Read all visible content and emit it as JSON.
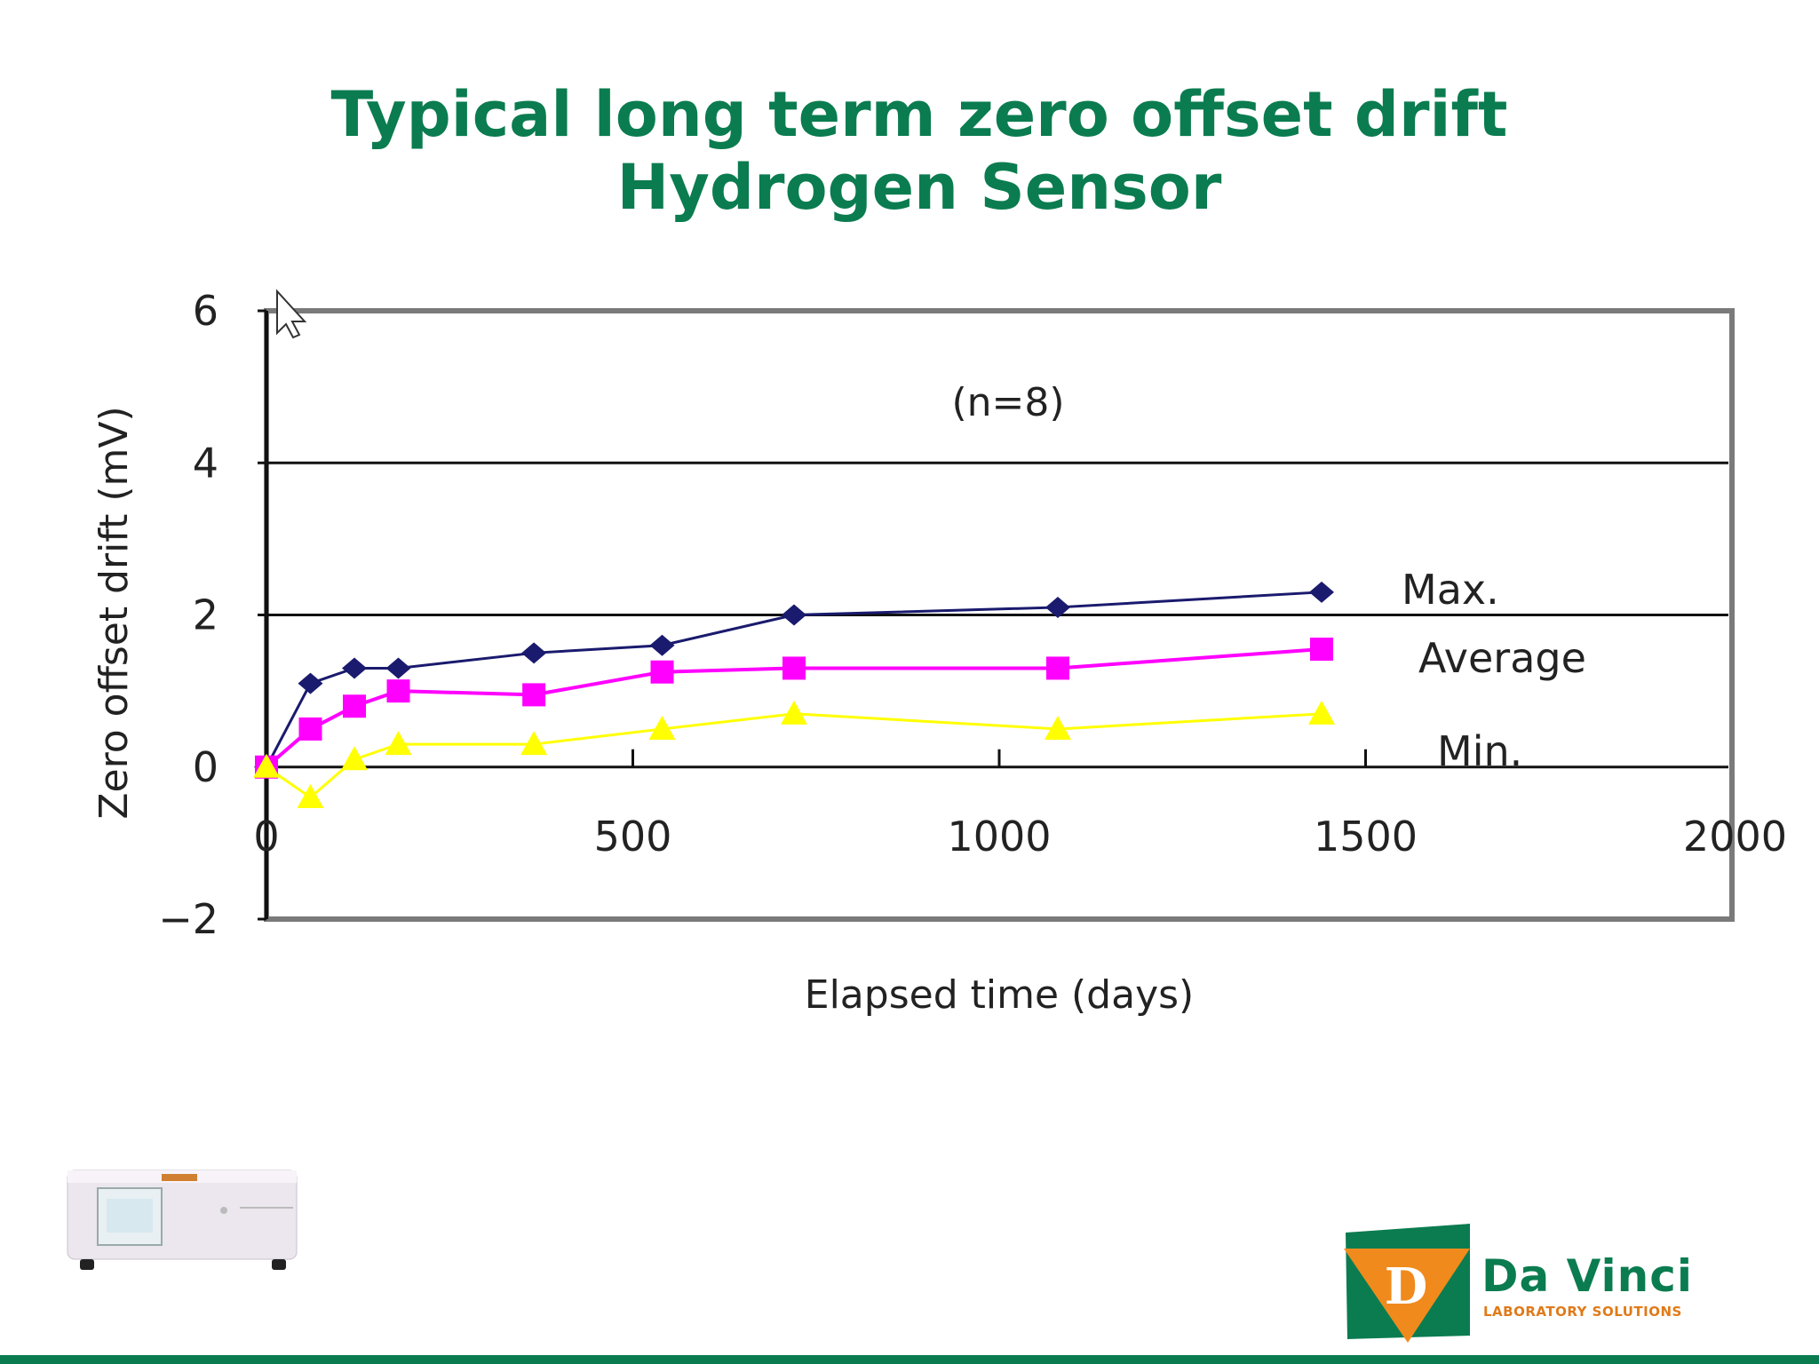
{
  "slide": {
    "title_line1": "Typical long term zero offset drift",
    "title_line2": "Hydrogen Sensor",
    "logo_name": "Da Vinci",
    "logo_sub": "LABORATORY SOLUTIONS",
    "accent_color": "#0a7c50"
  },
  "chart_data": {
    "type": "line",
    "title": "",
    "annotation": "(n=8)",
    "xlabel": "Elapsed time (days)",
    "ylabel": "Zero offset drift (mV)",
    "xlim": [
      0,
      2000
    ],
    "ylim": [
      -2,
      6
    ],
    "xticks": [
      "0",
      "500",
      "1000",
      "1500",
      "2000"
    ],
    "yticks": [
      "6",
      "4",
      "2",
      "0",
      "−2"
    ],
    "grid": "horizontal",
    "series": [
      {
        "name": "Max.",
        "color": "#1a1a6e",
        "marker": "diamond",
        "x": [
          0,
          60,
          120,
          180,
          365,
          540,
          720,
          1080,
          1440
        ],
        "y": [
          0.0,
          1.1,
          1.3,
          1.3,
          1.5,
          1.6,
          2.0,
          2.1,
          2.3
        ]
      },
      {
        "name": "Average",
        "color": "#ff00ff",
        "marker": "square",
        "x": [
          0,
          60,
          120,
          180,
          365,
          540,
          720,
          1080,
          1440
        ],
        "y": [
          0.0,
          0.5,
          0.8,
          1.0,
          0.95,
          1.25,
          1.3,
          1.3,
          1.55
        ]
      },
      {
        "name": "Min.",
        "color": "#ffff00",
        "marker": "triangle",
        "x": [
          0,
          60,
          120,
          180,
          365,
          540,
          720,
          1080,
          1440
        ],
        "y": [
          0.0,
          -0.4,
          0.1,
          0.3,
          0.3,
          0.5,
          0.7,
          0.5,
          0.7
        ]
      }
    ]
  }
}
